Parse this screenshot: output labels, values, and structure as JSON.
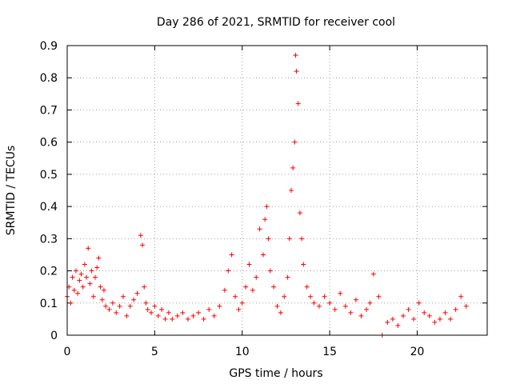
{
  "chart_data": {
    "type": "scatter",
    "title": "Day 286 of 2021, SRMTID for receiver cool",
    "xlabel": "GPS time / hours",
    "ylabel": "SRMTID / TECUs",
    "xlim": [
      0,
      24
    ],
    "ylim": [
      0,
      0.9
    ],
    "xticks": [
      0,
      5,
      10,
      15,
      20
    ],
    "xtick_labels": [
      "0",
      "5",
      "10",
      "15",
      "20"
    ],
    "yticks": [
      0,
      0.1,
      0.2,
      0.3,
      0.4,
      0.5,
      0.6,
      0.7,
      0.8,
      0.9
    ],
    "ytick_labels": [
      "0",
      "0.1",
      "0.2",
      "0.3",
      "0.4",
      "0.5",
      "0.6",
      "0.7",
      "0.8",
      "0.9"
    ],
    "grid": true,
    "marker": "+",
    "series": [
      {
        "name": "SRMTID",
        "color": "#ff0000",
        "x": [
          0.0,
          0.1,
          0.2,
          0.3,
          0.4,
          0.5,
          0.6,
          0.7,
          0.8,
          0.9,
          1.0,
          1.1,
          1.2,
          1.3,
          1.4,
          1.5,
          1.6,
          1.7,
          1.8,
          1.9,
          2.0,
          2.1,
          2.2,
          2.4,
          2.6,
          2.8,
          3.0,
          3.2,
          3.4,
          3.6,
          3.8,
          4.0,
          4.2,
          4.3,
          4.4,
          4.5,
          4.6,
          4.8,
          5.0,
          5.2,
          5.4,
          5.6,
          5.8,
          6.0,
          6.3,
          6.6,
          6.9,
          7.2,
          7.5,
          7.8,
          8.1,
          8.4,
          8.7,
          9.0,
          9.2,
          9.4,
          9.6,
          9.8,
          10.0,
          10.2,
          10.4,
          10.6,
          10.8,
          11.0,
          11.2,
          11.3,
          11.4,
          11.5,
          11.6,
          11.8,
          12.0,
          12.2,
          12.4,
          12.6,
          12.7,
          12.8,
          12.9,
          13.0,
          13.05,
          13.1,
          13.2,
          13.3,
          13.4,
          13.5,
          13.7,
          13.9,
          14.1,
          14.4,
          14.7,
          15.0,
          15.3,
          15.6,
          15.9,
          16.2,
          16.5,
          16.8,
          17.1,
          17.3,
          17.5,
          17.8,
          18.0,
          18.3,
          18.6,
          18.9,
          19.2,
          19.5,
          19.8,
          20.1,
          20.4,
          20.7,
          21.0,
          21.3,
          21.6,
          21.9,
          22.2,
          22.5,
          22.8
        ],
        "y": [
          0.12,
          0.15,
          0.1,
          0.18,
          0.14,
          0.2,
          0.13,
          0.17,
          0.19,
          0.15,
          0.22,
          0.18,
          0.27,
          0.16,
          0.2,
          0.12,
          0.18,
          0.21,
          0.24,
          0.15,
          0.11,
          0.14,
          0.09,
          0.08,
          0.1,
          0.07,
          0.09,
          0.12,
          0.06,
          0.09,
          0.11,
          0.13,
          0.31,
          0.28,
          0.15,
          0.1,
          0.08,
          0.07,
          0.09,
          0.06,
          0.08,
          0.05,
          0.07,
          0.05,
          0.06,
          0.07,
          0.05,
          0.06,
          0.07,
          0.05,
          0.08,
          0.06,
          0.09,
          0.14,
          0.2,
          0.25,
          0.12,
          0.08,
          0.1,
          0.15,
          0.22,
          0.14,
          0.18,
          0.33,
          0.25,
          0.36,
          0.4,
          0.3,
          0.2,
          0.15,
          0.09,
          0.07,
          0.12,
          0.18,
          0.3,
          0.45,
          0.52,
          0.6,
          0.87,
          0.82,
          0.72,
          0.38,
          0.3,
          0.22,
          0.15,
          0.12,
          0.1,
          0.09,
          0.12,
          0.1,
          0.08,
          0.13,
          0.09,
          0.07,
          0.11,
          0.06,
          0.08,
          0.1,
          0.19,
          0.12,
          0.0,
          0.04,
          0.05,
          0.03,
          0.06,
          0.08,
          0.05,
          0.1,
          0.07,
          0.06,
          0.04,
          0.05,
          0.07,
          0.05,
          0.08,
          0.12,
          0.09
        ]
      }
    ]
  }
}
